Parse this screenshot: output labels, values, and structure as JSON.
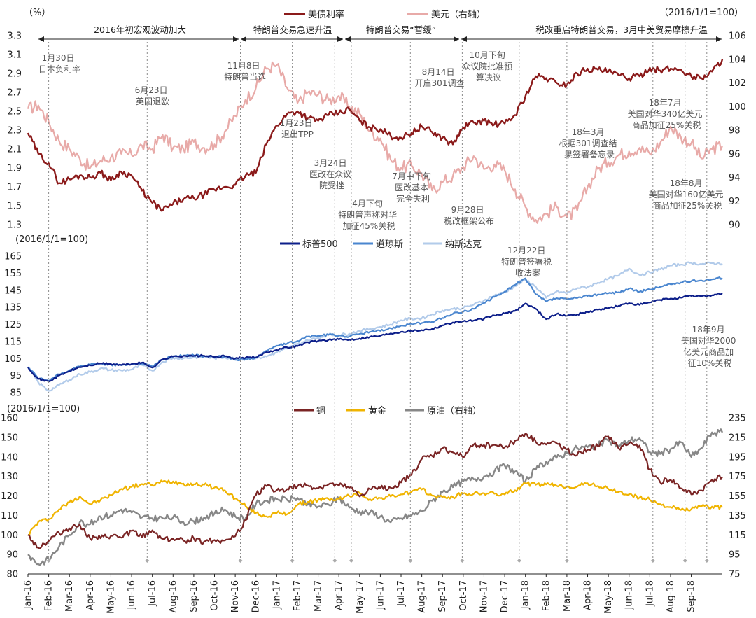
{
  "chart_data": [
    {
      "type": "line",
      "panel": "rates-fx",
      "y_left_label": "（%）",
      "y_right_label": "（2016/1/1=100）",
      "ylim_left": [
        1.3,
        3.3
      ],
      "ylim_right": [
        90,
        106
      ],
      "yticks_left": [
        "1.3",
        "1.5",
        "1.7",
        "1.9",
        "2.1",
        "2.3",
        "2.5",
        "2.7",
        "2.9",
        "3.1",
        "3.3"
      ],
      "yticks_right": [
        "90",
        "92",
        "94",
        "96",
        "98",
        "100",
        "102",
        "104",
        "106"
      ],
      "x": [
        0,
        0.5,
        1,
        1.5,
        2,
        2.5,
        3,
        3.5,
        4,
        4.5,
        5,
        5.5,
        6,
        6.5,
        7,
        7.5,
        8,
        8.5,
        9,
        9.5,
        10,
        10.5,
        11,
        11.5,
        12,
        12.5,
        13,
        13.5,
        14,
        14.5,
        15,
        15.5,
        16,
        16.5,
        17,
        17.5,
        18,
        18.5,
        19,
        19.5,
        20,
        20.5,
        21,
        21.5,
        22,
        22.5,
        23,
        23.5,
        24,
        24.5,
        25,
        25.5,
        26,
        26.5,
        27,
        27.5,
        28,
        28.5,
        29,
        29.5,
        30,
        30.5,
        31,
        31.5,
        32,
        32.5,
        33,
        33.5
      ],
      "series": [
        {
          "name": "美债利率",
          "axis": "left",
          "color": "#8b1a1a",
          "values": [
            2.27,
            2.05,
            1.95,
            1.74,
            1.78,
            1.82,
            1.8,
            1.85,
            1.77,
            1.86,
            1.82,
            1.66,
            1.53,
            1.45,
            1.52,
            1.57,
            1.58,
            1.62,
            1.67,
            1.7,
            1.72,
            1.82,
            1.85,
            2.15,
            2.35,
            2.47,
            2.5,
            2.43,
            2.4,
            2.46,
            2.48,
            2.52,
            2.4,
            2.33,
            2.31,
            2.24,
            2.22,
            2.27,
            2.34,
            2.28,
            2.22,
            2.15,
            2.33,
            2.38,
            2.4,
            2.36,
            2.37,
            2.46,
            2.66,
            2.87,
            2.85,
            2.8,
            2.78,
            2.9,
            2.95,
            2.94,
            2.92,
            2.88,
            2.85,
            2.87,
            2.96,
            2.93,
            2.95,
            2.94,
            2.87,
            2.85,
            2.92,
            3.05
          ]
        },
        {
          "name": "美元（右轴）",
          "axis": "right",
          "color": "#e8aaa8",
          "values": [
            99.8,
            100.1,
            98.7,
            97.1,
            96.4,
            95.6,
            94.8,
            95.4,
            95.7,
            96.0,
            95.9,
            96.7,
            96.4,
            97.6,
            96.5,
            96.4,
            97.0,
            96.5,
            96.8,
            97.9,
            99.2,
            100.6,
            101.6,
            103.2,
            103.5,
            101.6,
            100.3,
            101.2,
            101.0,
            100.5,
            100.9,
            100.0,
            99.4,
            97.9,
            97.3,
            95.5,
            94.8,
            95.0,
            94.3,
            92.9,
            93.6,
            94.1,
            94.9,
            95.8,
            94.7,
            95.1,
            94.6,
            93.0,
            91.5,
            90.4,
            90.9,
            91.5,
            90.6,
            91.2,
            93.2,
            94.7,
            95.3,
            95.9,
            96.2,
            96.5,
            96.0,
            96.9,
            98.3,
            97.4,
            96.9,
            95.6,
            96.4,
            96.7
          ]
        }
      ],
      "legend": [
        "美债利率",
        "美元（右轴）"
      ],
      "legend_position": "top-center"
    },
    {
      "type": "line",
      "panel": "equities",
      "y_left_label": "(2016/1/1=100)",
      "ylim": [
        85,
        170
      ],
      "yticks": [
        "85",
        "95",
        "105",
        "115",
        "125",
        "135",
        "145",
        "155",
        "165"
      ],
      "x": [
        0,
        0.5,
        1,
        1.5,
        2,
        2.5,
        3,
        3.5,
        4,
        4.5,
        5,
        5.5,
        6,
        6.5,
        7,
        7.5,
        8,
        8.5,
        9,
        9.5,
        10,
        10.5,
        11,
        11.5,
        12,
        12.5,
        13,
        13.5,
        14,
        14.5,
        15,
        15.5,
        16,
        16.5,
        17,
        17.5,
        18,
        18.5,
        19,
        19.5,
        20,
        20.5,
        21,
        21.5,
        22,
        22.5,
        23,
        23.5,
        24,
        24.5,
        25,
        25.5,
        26,
        26.5,
        27,
        27.5,
        28,
        28.5,
        29,
        29.5,
        30,
        30.5,
        31,
        31.5,
        32,
        32.5,
        33,
        33.5
      ],
      "series": [
        {
          "name": "标普500",
          "color": "#0d1f8a",
          "values": [
            100.0,
            93.0,
            91.5,
            95.0,
            97.6,
            100.0,
            101.0,
            102.2,
            101.8,
            101.2,
            101.8,
            102.6,
            99.7,
            104.5,
            106.2,
            106.6,
            106.5,
            106.7,
            105.8,
            106.4,
            105.1,
            105.5,
            105.6,
            108.8,
            110.1,
            111.6,
            112.3,
            114.6,
            115.4,
            116.0,
            116.2,
            116.1,
            116.8,
            117.8,
            118.4,
            119.8,
            120.7,
            121.3,
            121.7,
            122.4,
            124.5,
            126.2,
            126.9,
            127.3,
            128.3,
            130.3,
            131.4,
            132.9,
            137.3,
            134.2,
            128.1,
            131.1,
            130.1,
            131.0,
            132.3,
            133.7,
            134.6,
            135.9,
            137.5,
            136.5,
            137.9,
            139.4,
            140.2,
            140.7,
            141.7,
            141.6,
            142.1,
            143.3
          ]
        },
        {
          "name": "道琼斯",
          "color": "#4a86cf",
          "values": [
            100.0,
            93.2,
            92.0,
            95.7,
            98.1,
            100.3,
            101.3,
            102.0,
            101.5,
            101.1,
            101.7,
            102.2,
            100.5,
            104.5,
            106.4,
            106.8,
            106.9,
            106.4,
            105.8,
            106.3,
            104.2,
            104.7,
            105.7,
            109.5,
            112.5,
            113.7,
            115.3,
            117.9,
            118.4,
            118.9,
            118.5,
            117.9,
            119.5,
            120.7,
            121.2,
            122.8,
            124.3,
            125.4,
            125.8,
            126.6,
            128.8,
            131.2,
            132.5,
            134.2,
            137.6,
            141.2,
            144.3,
            148.2,
            152.0,
            142.6,
            138.5,
            140.4,
            139.7,
            140.5,
            141.7,
            142.6,
            143.3,
            143.9,
            146.0,
            144.2,
            145.5,
            147.1,
            148.6,
            149.6,
            150.4,
            150.8,
            151.5,
            152.3
          ]
        },
        {
          "name": "纳斯达克",
          "color": "#b2cbea",
          "values": [
            100.0,
            91.0,
            86.0,
            89.4,
            92.6,
            95.8,
            97.1,
            99.2,
            98.2,
            98.0,
            98.6,
            101.2,
            97.9,
            103.2,
            105.4,
            105.2,
            105.6,
            106.2,
            105.2,
            105.8,
            104.9,
            105.0,
            105.2,
            106.2,
            108.6,
            110.8,
            113.4,
            115.8,
            117.1,
            119.1,
            118.8,
            119.6,
            121.3,
            122.4,
            123.6,
            125.0,
            127.5,
            128.4,
            128.6,
            131.0,
            133.2,
            134.1,
            134.7,
            136.6,
            139.1,
            142.0,
            143.9,
            147.5,
            151.2,
            147.1,
            140.6,
            144.3,
            143.4,
            146.4,
            147.0,
            149.5,
            151.8,
            153.6,
            157.8,
            154.1,
            155.6,
            157.3,
            159.6,
            160.1,
            161.2,
            160.4,
            161.0,
            160.7
          ]
        }
      ],
      "legend": [
        "标普500",
        "道琼斯",
        "纳斯达克"
      ],
      "legend_position": "top-center"
    },
    {
      "type": "line",
      "panel": "commodities",
      "y_left_label": "(2016/1/1=100)",
      "ylim_left": [
        80,
        160
      ],
      "ylim_right": [
        75,
        235
      ],
      "yticks_left": [
        "80",
        "90",
        "100",
        "110",
        "120",
        "130",
        "140",
        "150",
        "160"
      ],
      "yticks_right": [
        "75",
        "95",
        "115",
        "135",
        "155",
        "175",
        "195",
        "215",
        "235"
      ],
      "x": [
        0,
        0.5,
        1,
        1.5,
        2,
        2.5,
        3,
        3.5,
        4,
        4.5,
        5,
        5.5,
        6,
        6.5,
        7,
        7.5,
        8,
        8.5,
        9,
        9.5,
        10,
        10.5,
        11,
        11.5,
        12,
        12.5,
        13,
        13.5,
        14,
        14.5,
        15,
        15.5,
        16,
        16.5,
        17,
        17.5,
        18,
        18.5,
        19,
        19.5,
        20,
        20.5,
        21,
        21.5,
        22,
        22.5,
        23,
        23.5,
        24,
        24.5,
        25,
        25.5,
        26,
        26.5,
        27,
        27.5,
        28,
        28.5,
        29,
        29.5,
        30,
        30.5,
        31,
        31.5,
        32,
        32.5,
        33,
        33.5
      ],
      "series": [
        {
          "name": "铜",
          "axis": "left",
          "color": "#7a2424",
          "values": [
            100.0,
            93.5,
            96.9,
            101.1,
            103.4,
            105.4,
            98.1,
            98.3,
            99.5,
            98.6,
            102.1,
            98.9,
            102.4,
            98.0,
            98.0,
            97.0,
            98.3,
            96.6,
            97.4,
            97.2,
            99.3,
            107.5,
            120.4,
            125.1,
            122.8,
            123.5,
            124.9,
            125.3,
            123.9,
            125.9,
            125.2,
            124.2,
            119.7,
            123.5,
            124.0,
            124.2,
            126.9,
            130.7,
            138.9,
            140.4,
            144.3,
            142.3,
            139.7,
            146.3,
            146.1,
            146.2,
            145.0,
            148.3,
            152.0,
            147.7,
            146.3,
            147.0,
            143.8,
            141.0,
            143.7,
            145.4,
            150.5,
            144.2,
            146.9,
            145.8,
            133.4,
            127.0,
            128.4,
            123.9,
            120.8,
            122.8,
            128.2,
            129.8
          ]
        },
        {
          "name": "黄金",
          "axis": "left",
          "color": "#f0b400",
          "values": [
            100.0,
            106.7,
            108.0,
            113.1,
            116.7,
            119.8,
            115.8,
            117.8,
            120.3,
            123.6,
            124.6,
            126.1,
            125.6,
            127.3,
            127.4,
            126.3,
            126.0,
            125.7,
            124.3,
            122.9,
            118.7,
            114.8,
            111.2,
            109.5,
            111.2,
            110.6,
            115.3,
            116.9,
            117.9,
            118.3,
            118.4,
            120.0,
            121.4,
            118.3,
            118.9,
            119.7,
            120.8,
            122.1,
            123.3,
            120.1,
            119.3,
            119.4,
            121.2,
            121.0,
            121.4,
            121.1,
            120.7,
            122.9,
            126.4,
            125.7,
            125.9,
            125.2,
            124.9,
            124.8,
            126.5,
            125.1,
            123.6,
            122.0,
            120.7,
            119.1,
            118.0,
            115.8,
            114.3,
            112.8,
            113.2,
            114.7,
            114.5,
            114.0
          ]
        },
        {
          "name": "原油（右轴）",
          "axis": "right",
          "color": "#878787",
          "values": [
            95.0,
            85.0,
            90.0,
            103.0,
            115.0,
            128.0,
            126.0,
            134.0,
            135.0,
            141.0,
            138.0,
            133.0,
            132.0,
            132.0,
            133.0,
            128.0,
            129.0,
            133.0,
            137.0,
            141.0,
            134.0,
            132.0,
            147.0,
            150.0,
            152.0,
            151.0,
            153.0,
            146.0,
            144.0,
            146.0,
            153.0,
            143.0,
            139.0,
            138.0,
            134.0,
            128.0,
            132.0,
            135.0,
            139.0,
            150.0,
            159.0,
            164.0,
            170.0,
            172.0,
            175.0,
            180.0,
            186.0,
            180.0,
            170.0,
            182.0,
            190.0,
            194.0,
            199.0,
            204.0,
            205.0,
            207.0,
            212.0,
            206.0,
            212.0,
            214.0,
            200.0,
            198.0,
            203.0,
            210.0,
            195.0,
            204.0,
            220.0,
            220.0
          ]
        }
      ],
      "legend": [
        "铜",
        "黄金",
        "原油（右轴）"
      ],
      "legend_position": "top-center"
    }
  ],
  "x_axis": {
    "tick_labels": [
      "Jan-16",
      "Feb-16",
      "Mar-16",
      "Apr-16",
      "May-16",
      "Jun-16",
      "Jul-16",
      "Aug-16",
      "Sep-16",
      "Oct-16",
      "Nov-16",
      "Dec-16",
      "Jan-17",
      "Feb-17",
      "Mar-17",
      "Apr-17",
      "May-17",
      "Jun-17",
      "Jul-17",
      "Aug-17",
      "Sep-17",
      "Oct-17",
      "Nov-17",
      "Dec-17",
      "Jan-18",
      "Feb-18",
      "Mar-18",
      "Apr-18",
      "May-18",
      "Jun-18",
      "Jul-18",
      "Aug-18",
      "Sep-18"
    ],
    "tick_months": [
      0,
      1,
      2,
      3,
      4,
      5,
      6,
      7,
      8,
      9,
      10,
      11,
      12,
      13,
      14,
      15,
      16,
      17,
      18,
      19,
      20,
      21,
      22,
      23,
      24,
      25,
      26,
      27,
      28,
      29,
      30,
      31,
      32
    ],
    "domain_months": [
      0,
      33.5
    ]
  },
  "period_bands": [
    {
      "label": "2016年初宏观波动加大",
      "from": 0.5,
      "to": 10.35
    },
    {
      "label": "特朗普交易急速升温",
      "from": 10.35,
      "to": 14.85
    },
    {
      "label": "特朗普交易“暂缓”",
      "from": 14.85,
      "to": 20.9
    },
    {
      "label": "税改重启特朗普交易，3月中美贸易摩擦升温",
      "from": 20.9,
      "to": 33.3
    }
  ],
  "event_lines": [
    1.0,
    5.75,
    10.25,
    12.75,
    14.8,
    15.6,
    18.45,
    20.95,
    23.7,
    26.0,
    30.15,
    31.7,
    32.75
  ],
  "annotations": [
    {
      "id": "jan30",
      "lines": [
        "1月30日",
        "日本负利率"
      ]
    },
    {
      "id": "jun23",
      "lines": [
        "6月23日",
        "英国退欧"
      ]
    },
    {
      "id": "nov8",
      "lines": [
        "11月8日",
        "特朗普当选"
      ]
    },
    {
      "id": "jan23",
      "lines": [
        "1月23日",
        "退出TPP"
      ]
    },
    {
      "id": "mar24",
      "lines": [
        "3月24日",
        "医改在众议",
        "院受挫"
      ]
    },
    {
      "id": "apr",
      "lines": [
        "4月下旬",
        "特朗普声称对华",
        "加征45%关税"
      ]
    },
    {
      "id": "jul",
      "lines": [
        "7月中下旬",
        "医改基本",
        "完全失利"
      ]
    },
    {
      "id": "aug14",
      "lines": [
        "8月14日",
        "开启301调查"
      ]
    },
    {
      "id": "sep28",
      "lines": [
        "9月28日",
        "税改框架公布"
      ]
    },
    {
      "id": "oct",
      "lines": [
        "10月下旬",
        "众议院批准预",
        "算决议"
      ]
    },
    {
      "id": "dec22",
      "lines": [
        "12月22日",
        "特朗普签署税",
        "收法案"
      ]
    },
    {
      "id": "mar18",
      "lines": [
        "18年3月",
        "根据301调查结",
        "果签署备忘录"
      ]
    },
    {
      "id": "jul18",
      "lines": [
        "18年7月",
        "美国对华340亿美元",
        "商品加征25%关税"
      ]
    },
    {
      "id": "aug18",
      "lines": [
        "18年8月",
        "美国对华160亿美元",
        "商品加征25%关税"
      ]
    },
    {
      "id": "sep18",
      "lines": [
        "18年9月",
        "美国对华2000",
        "亿美元商品加",
        "征10%关税"
      ]
    }
  ]
}
